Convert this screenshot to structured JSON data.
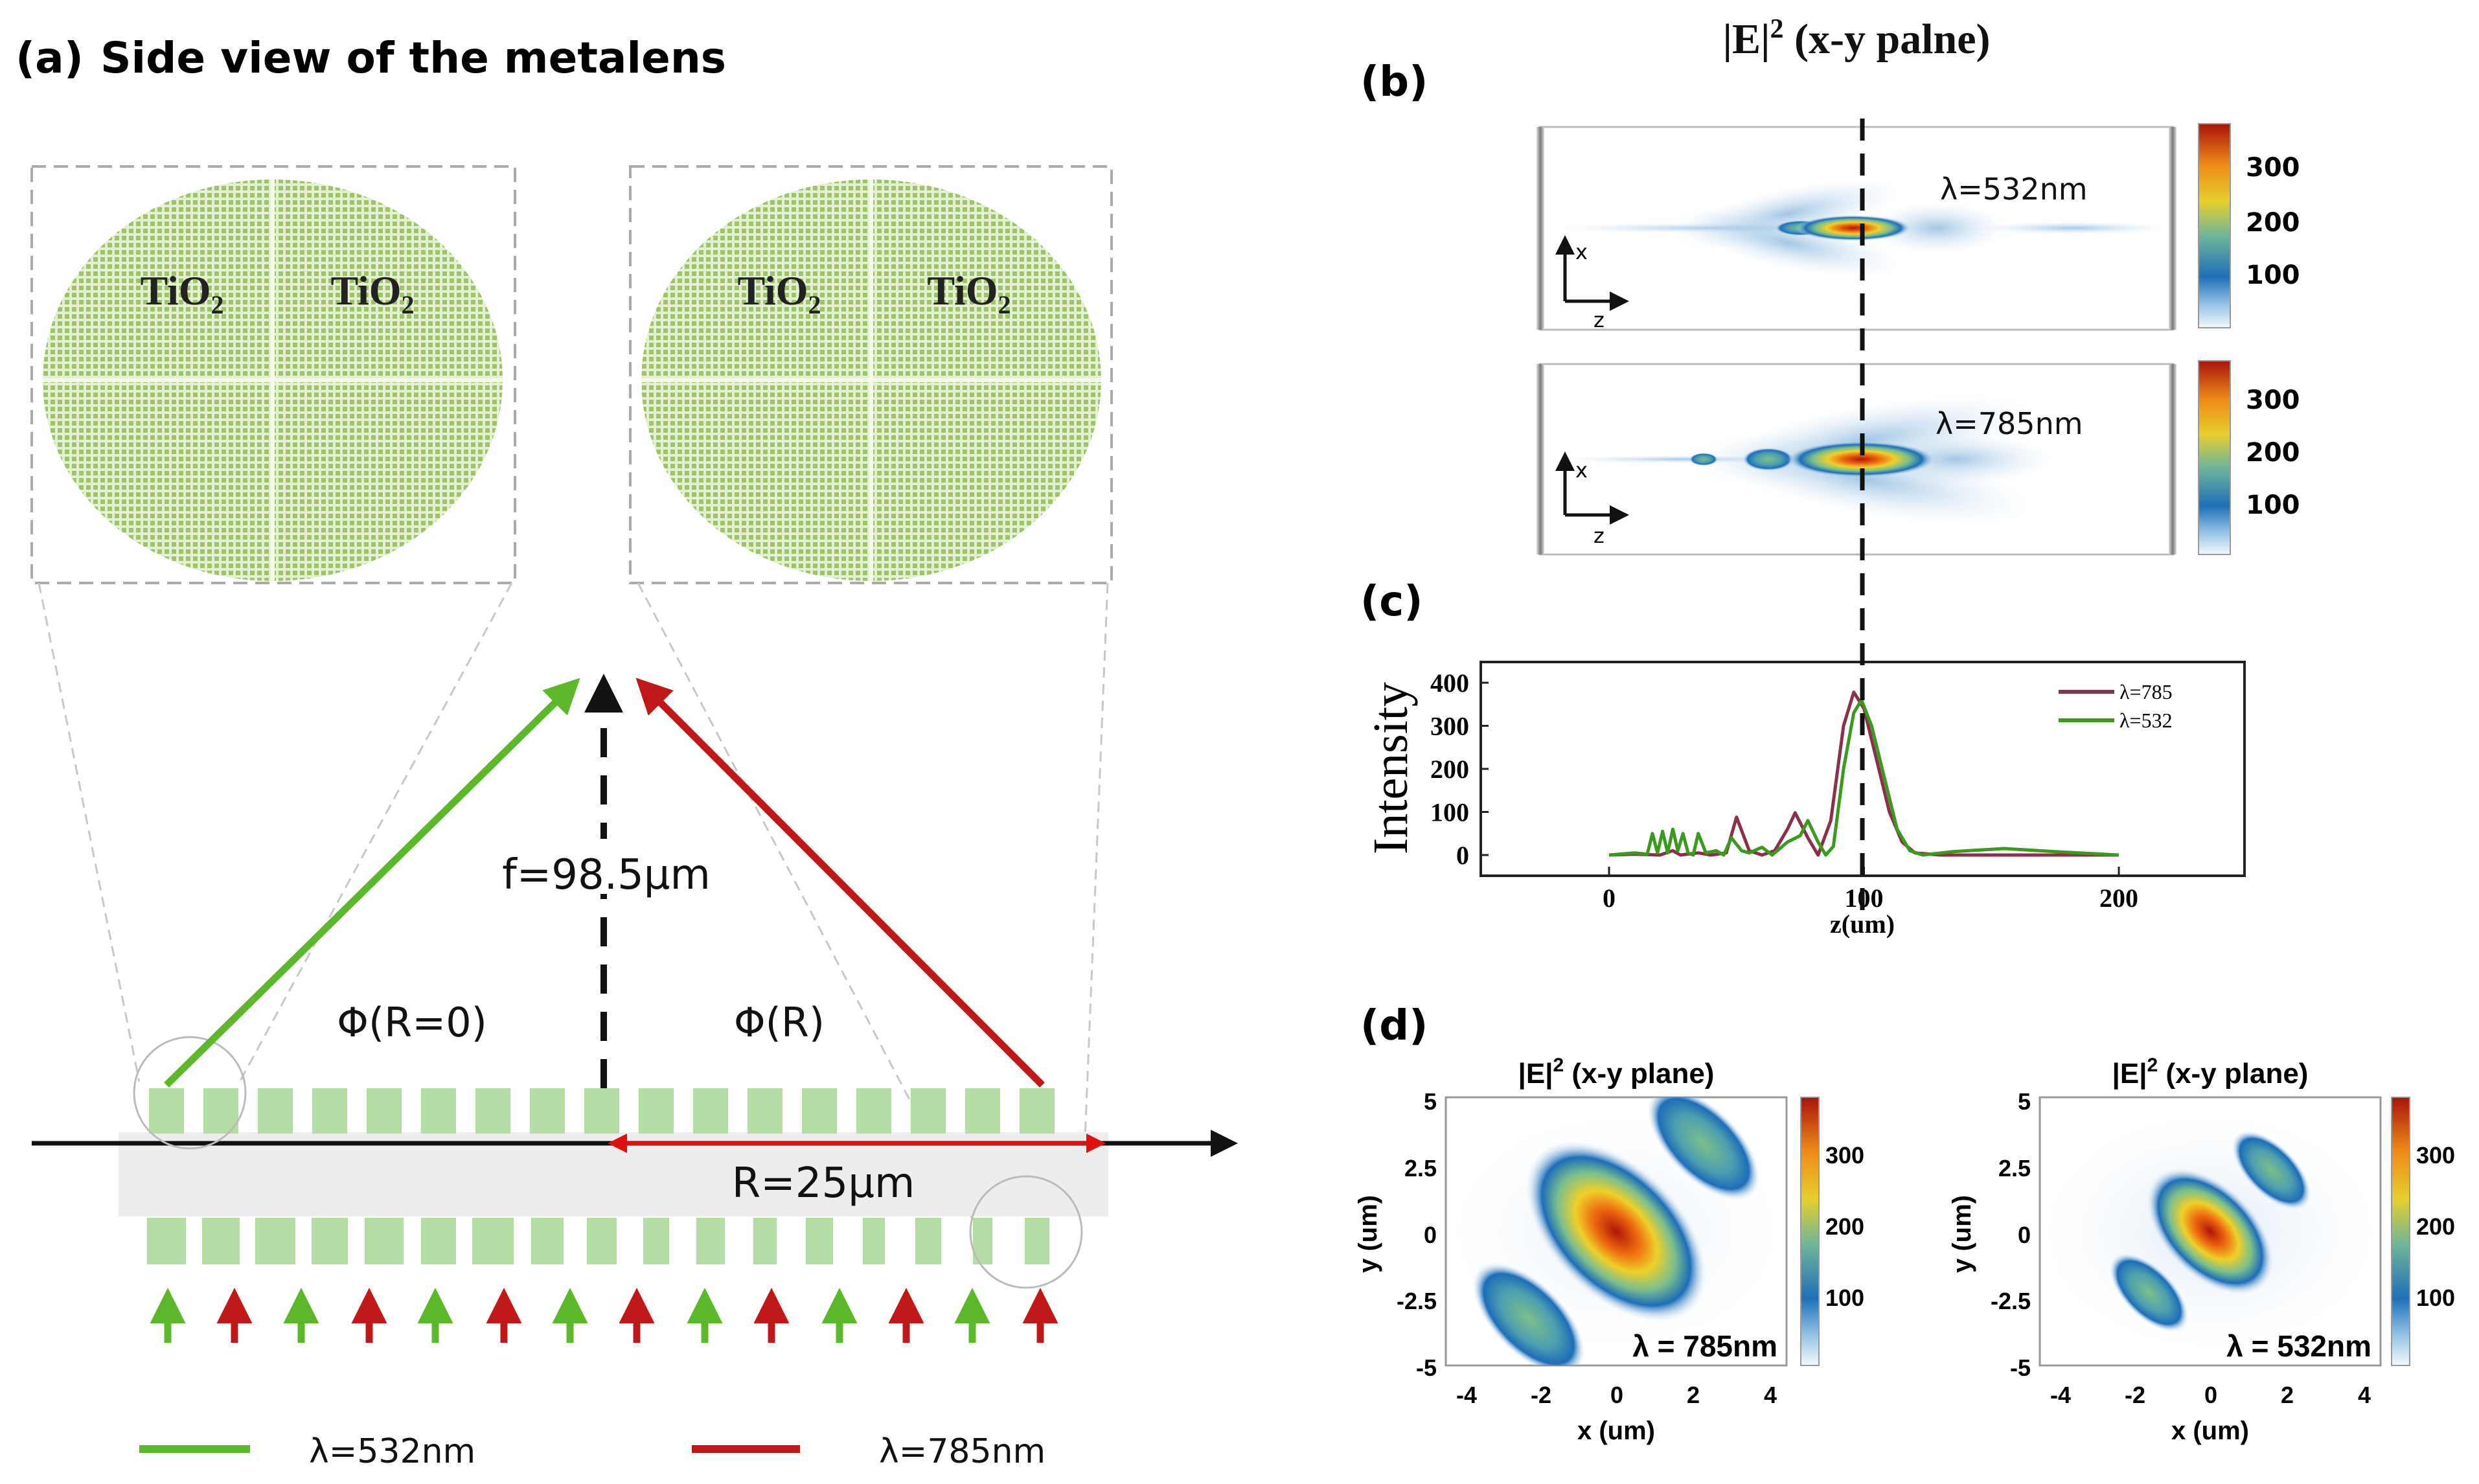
{
  "panel_a": {
    "label": "(a)",
    "title": "Side view of the metalens",
    "inset_left": {
      "labels": [
        "TiO",
        "TiO"
      ],
      "subscript": "2"
    },
    "inset_right": {
      "labels": [
        "TiO",
        "TiO"
      ],
      "subscript": "2"
    },
    "focal_label": "f=98.5μm",
    "phase_center": "Φ(R=0)",
    "phase_edge": "Φ(R)",
    "radius_label": "R=25μm",
    "legend": [
      {
        "label": "λ=532nm",
        "color": "#5cb82a"
      },
      {
        "label": "λ=785nm",
        "color": "#c01818"
      }
    ],
    "colors": {
      "green": "#5cb82a",
      "red": "#c01818",
      "pillar": "#b5dca4",
      "substrate": "#ededed"
    }
  },
  "right_title": {
    "main": "|E|",
    "sup": "2",
    "rest": " (x-y palne)"
  },
  "panel_b": {
    "label": "(b)",
    "maps": [
      {
        "wavelength_label": "λ=532nm",
        "colorbar_ticks": [
          "300",
          "200",
          "100"
        ],
        "axis_x": "x",
        "axis_z": "z"
      },
      {
        "wavelength_label": "λ=785nm",
        "colorbar_ticks": [
          "300",
          "200",
          "100"
        ],
        "axis_x": "x",
        "axis_z": "z"
      }
    ]
  },
  "panel_c": {
    "label": "(c)"
  },
  "panel_d": {
    "label": "(d)",
    "maps": [
      {
        "title": "|E|",
        "title_sup": "2",
        "title_rest": " (x-y plane)",
        "wavelength_label": "λ = 785nm",
        "colorbar_ticks": [
          "300",
          "200",
          "100"
        ]
      },
      {
        "title": "|E|",
        "title_sup": "2",
        "title_rest": " (x-y plane)",
        "wavelength_label": "λ = 532nm",
        "colorbar_ticks": [
          "300",
          "200",
          "100"
        ]
      }
    ],
    "xlabel": "x (um)",
    "ylabel": "y (um)",
    "x_ticks": [
      "-4",
      "-2",
      "0",
      "2",
      "4"
    ],
    "y_ticks": [
      "5",
      "2.5",
      "0",
      "-2.5",
      "-5"
    ]
  },
  "chart_data": {
    "type": "line",
    "xlabel": "z(um)",
    "ylabel": "Intensity",
    "xlim": [
      -50,
      250
    ],
    "ylim": [
      -50,
      450
    ],
    "x_ticks": [
      "0",
      "100",
      "200"
    ],
    "y_ticks": [
      "400",
      "300",
      "200",
      "100",
      "0"
    ],
    "legend_position": "top-right",
    "series": [
      {
        "name": "λ=785",
        "color": "#8b2f4a",
        "x": [
          0,
          10,
          20,
          25,
          28,
          35,
          40,
          46,
          50,
          55,
          60,
          65,
          70,
          73,
          78,
          82,
          87,
          92,
          96,
          100,
          105,
          110,
          115,
          120,
          130,
          200
        ],
        "y": [
          0,
          2,
          0,
          10,
          0,
          5,
          0,
          5,
          88,
          10,
          0,
          10,
          60,
          98,
          40,
          0,
          80,
          300,
          378,
          340,
          220,
          100,
          30,
          5,
          0,
          0
        ]
      },
      {
        "name": "λ=532",
        "color": "#3a9a1e",
        "x": [
          0,
          10,
          15,
          17,
          19,
          21,
          23,
          25,
          27,
          29,
          31,
          33,
          35,
          38,
          42,
          45,
          48,
          52,
          55,
          60,
          64,
          70,
          75,
          78,
          82,
          85,
          88,
          92,
          96,
          99,
          103,
          108,
          113,
          118,
          123,
          135,
          155,
          175,
          200
        ],
        "y": [
          0,
          5,
          2,
          50,
          5,
          55,
          5,
          60,
          10,
          50,
          5,
          0,
          50,
          5,
          10,
          0,
          40,
          10,
          5,
          18,
          0,
          30,
          45,
          80,
          30,
          0,
          20,
          200,
          330,
          360,
          300,
          180,
          60,
          10,
          0,
          8,
          15,
          8,
          0
        ]
      }
    ]
  }
}
